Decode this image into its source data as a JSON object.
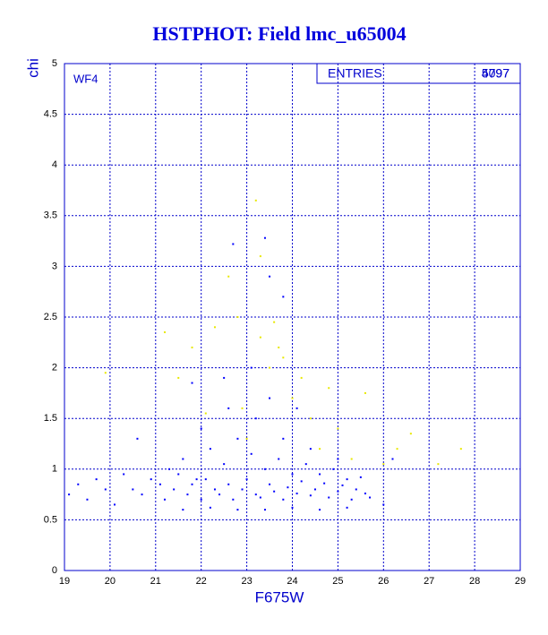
{
  "chart_data": {
    "type": "scatter",
    "title": "HSTPHOT: Field lmc_u65004",
    "xlabel": "F675W",
    "ylabel": "chi",
    "panel_label": "WF4",
    "stats": {
      "label": "ENTRIES",
      "values": [
        4797,
        5097
      ]
    },
    "xlim": [
      19,
      29
    ],
    "xticks": [
      19,
      20,
      21,
      22,
      23,
      24,
      25,
      26,
      27,
      28,
      29
    ],
    "ylim": [
      0,
      5
    ],
    "yticks": [
      0,
      0.5,
      1,
      1.5,
      2,
      2.5,
      3,
      3.5,
      4,
      4.5,
      5
    ],
    "grid": true,
    "axis_color": "#0000cc",
    "series": [
      {
        "color": "#0000ff",
        "x": [
          19.1,
          19.3,
          19.5,
          19.7,
          19.9,
          20.1,
          20.3,
          20.5,
          20.7,
          20.9,
          21.1,
          21.2,
          21.4,
          21.5,
          21.7,
          21.8,
          22.0,
          22.1,
          22.3,
          22.4,
          22.6,
          22.7,
          22.9,
          23.0,
          23.2,
          23.3,
          23.5,
          23.6,
          23.8,
          23.9,
          24.1,
          24.2,
          24.4,
          24.5,
          24.7,
          24.8,
          25.0,
          25.1,
          25.3,
          25.4,
          25.6,
          25.7
        ],
        "values": [
          0.75,
          0.85,
          0.7,
          0.9,
          0.8,
          0.65,
          0.95,
          0.8,
          0.75,
          0.9,
          0.85,
          0.7,
          0.8,
          0.95,
          0.75,
          0.85,
          0.7,
          0.9,
          0.8,
          0.75,
          0.85,
          0.7,
          0.8,
          0.9,
          0.75,
          0.72,
          0.85,
          0.78,
          0.7,
          0.82,
          0.76,
          0.88,
          0.74,
          0.8,
          0.86,
          0.72,
          0.78,
          0.84,
          0.7,
          0.8,
          0.76,
          0.72
        ]
      },
      {
        "color": "#0000ff",
        "x": [
          21.3,
          21.6,
          21.9,
          22.2,
          22.5,
          22.8,
          23.1,
          23.4,
          23.7,
          24.0,
          24.3,
          24.6,
          24.9,
          25.2,
          25.5,
          21.6,
          22.2,
          22.8,
          23.4,
          24.0,
          24.6,
          25.2,
          22.0,
          22.6,
          23.2,
          23.8,
          24.4,
          25.0,
          22.5,
          23.1,
          23.5,
          24.1
        ],
        "values": [
          1.0,
          1.1,
          0.9,
          1.2,
          1.05,
          1.3,
          1.15,
          1.0,
          1.1,
          0.95,
          1.05,
          0.95,
          1.0,
          0.9,
          0.92,
          0.6,
          0.62,
          0.6,
          0.6,
          0.62,
          0.6,
          0.62,
          1.4,
          1.6,
          1.5,
          1.3,
          1.2,
          1.1,
          1.9,
          2.0,
          1.7,
          1.6
        ]
      },
      {
        "color": "#0000ff",
        "x": [
          22.7,
          23.4,
          23.5,
          23.8,
          21.8,
          20.6,
          26.0,
          26.2
        ],
        "values": [
          3.22,
          3.28,
          2.9,
          2.7,
          1.85,
          1.3,
          0.65,
          1.1
        ]
      },
      {
        "color": "#e8e800",
        "x": [
          21.2,
          21.5,
          21.8,
          22.1,
          22.3,
          22.6,
          22.8,
          23.0,
          23.2,
          23.3,
          23.5,
          23.6,
          23.8,
          24.0,
          24.2,
          24.4,
          24.6,
          24.8,
          25.0,
          25.3,
          25.6,
          26.0,
          26.3,
          26.6,
          27.2,
          27.7,
          19.9,
          23.3,
          22.9,
          23.7
        ],
        "values": [
          2.35,
          1.9,
          2.2,
          1.55,
          2.4,
          2.9,
          2.5,
          1.3,
          3.65,
          2.3,
          2.0,
          2.45,
          2.1,
          1.7,
          1.9,
          1.5,
          1.2,
          1.8,
          1.4,
          1.1,
          1.75,
          1.05,
          1.2,
          1.35,
          1.05,
          1.2,
          1.95,
          3.1,
          1.6,
          2.2
        ]
      }
    ]
  }
}
